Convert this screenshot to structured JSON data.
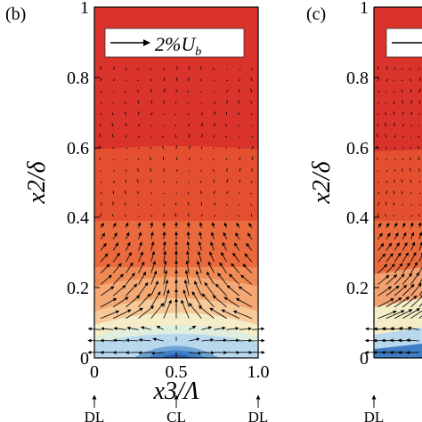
{
  "panels": [
    {
      "label": "(b)",
      "y_axis_label": "x2/δ",
      "y_ticks": [
        "0",
        "0.2",
        "0.4",
        "0.6",
        "0.8",
        "1"
      ],
      "x_axis_label": "x3/Λ",
      "x_ticks": [
        "0",
        "0.5",
        "1.0"
      ],
      "scale_label": "2%U",
      "scale_label_sub": "b",
      "markers": [
        {
          "text": "DL",
          "x": 0.0
        },
        {
          "text": "CL",
          "x": 0.5
        },
        {
          "text": "DL",
          "x": 1.0
        }
      ]
    },
    {
      "label": "(c)",
      "y_axis_label": "x2/δ",
      "y_ticks": [
        "0",
        "0.2",
        "0.4",
        "0.6",
        "0.8",
        "1"
      ],
      "markers": [
        {
          "text": "DL",
          "x": 0.0
        }
      ]
    }
  ],
  "colors": {
    "top": "#d9332b",
    "mid_red": "#e4502f",
    "orange": "#ee7a49",
    "light_orange": "#f6b484",
    "cream": "#f4edc7",
    "pale_blue": "#b8d8ee",
    "blue": "#3f7ec4",
    "deep_blue": "#2a5aa8"
  }
}
